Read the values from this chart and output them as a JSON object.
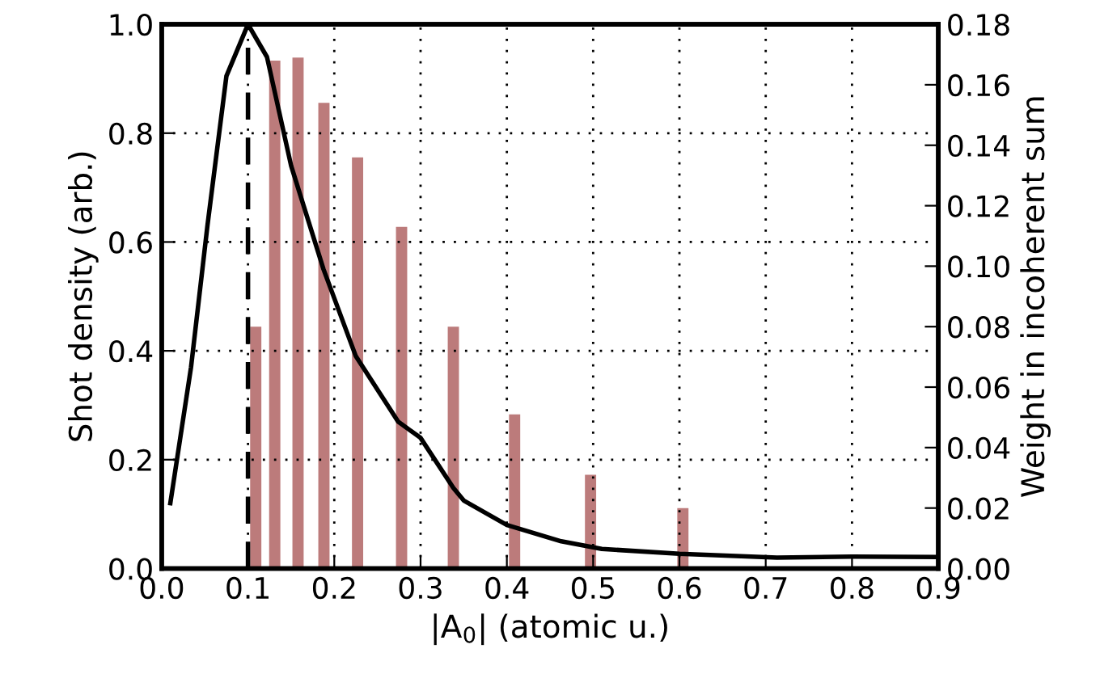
{
  "chart_data": {
    "type": "line",
    "xlabel": "|A$_{0}$| (atomic u.)",
    "ylabel": "Shot density (arb.)",
    "y2label": "Weight in incoherent sum",
    "xlim": [
      0.0,
      0.9
    ],
    "xticks": [
      {
        "value": 0.0,
        "label": "0.0"
      },
      0.1,
      0.2,
      0.3,
      0.4,
      0.5,
      0.6,
      0.7,
      0.8,
      0.9
    ],
    "ylim": [
      0.0,
      1.0
    ],
    "yticks": [
      {
        "value": 0.0,
        "label": "0.0"
      },
      0.2,
      0.4,
      0.6,
      0.8,
      {
        "value": 1.0,
        "label": "1.0"
      }
    ],
    "y2lim": [
      0.0,
      0.18
    ],
    "y2ticks": [
      {
        "value": 0.0,
        "label": "0.00"
      },
      {
        "value": 0.02,
        "label": "0.02"
      },
      {
        "value": 0.04,
        "label": "0.04"
      },
      {
        "value": 0.06,
        "label": "0.06"
      },
      {
        "value": 0.08,
        "label": "0.08"
      },
      {
        "value": 0.1,
        "label": "0.10"
      },
      {
        "value": 0.12,
        "label": "0.12"
      },
      {
        "value": 0.14,
        "label": "0.14"
      },
      {
        "value": 0.16,
        "label": "0.16"
      },
      {
        "value": 0.18,
        "label": "0.18"
      }
    ],
    "grid": true,
    "series": [
      {
        "color": "#000000",
        "x": [
          0.01,
          0.034,
          0.053,
          0.075,
          0.1,
          0.122,
          0.15,
          0.1875,
          0.225,
          0.274,
          0.3,
          0.338,
          0.35,
          0.4,
          0.463,
          0.51,
          0.6,
          0.713,
          0.8,
          0.9
        ],
        "values": [
          0.12,
          0.37,
          0.63,
          0.905,
          1.0,
          0.94,
          0.74,
          0.55,
          0.39,
          0.27,
          0.24,
          0.148,
          0.125,
          0.08,
          0.05,
          0.036,
          0.027,
          0.02,
          0.022,
          0.021
        ]
      },
      {
        "type": "bar",
        "axis": "y2",
        "color": "#bc7b7b",
        "x": [
          0.109,
          0.131,
          0.158,
          0.188,
          0.227,
          0.278,
          0.338,
          0.409,
          0.497,
          0.604
        ],
        "values": [
          0.08,
          0.168,
          0.169,
          0.154,
          0.136,
          0.113,
          0.08,
          0.051,
          0.031,
          0.02
        ]
      }
    ],
    "ref_lines": [
      {
        "axis": "x",
        "value": 0.1,
        "color": "#000000",
        "line_style": "dashed"
      }
    ]
  }
}
